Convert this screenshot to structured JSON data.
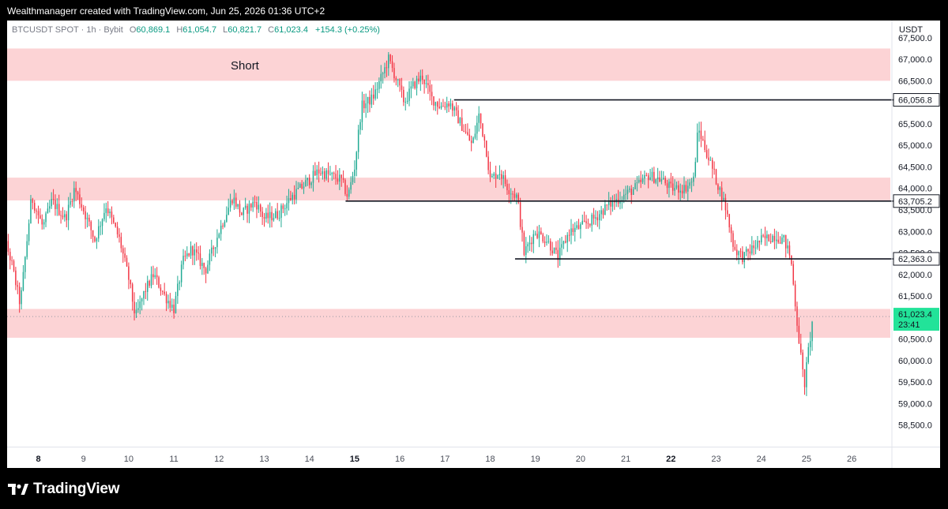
{
  "header": {
    "attribution": "Wealthmanagerr created with TradingView.com, Jun 25, 2026 01:36 UTC+2"
  },
  "legend": {
    "symbol": "BTCUSDT SPOT · 1h · Bybit",
    "open_label": "O",
    "open": "60,869.1",
    "high_label": "H",
    "high": "61,054.7",
    "low_label": "L",
    "low": "60,821.7",
    "close_label": "C",
    "close": "61,023.4",
    "change": "+154.3 (+0.25%)"
  },
  "currency": "USDT",
  "footer": {
    "brand": "TradingView"
  },
  "colors": {
    "up": "#22ab94",
    "down": "#f23645",
    "zone": "#fcd3d5",
    "current": "#22e399",
    "line": "#131722"
  },
  "chart_data": {
    "type": "candlestick",
    "ylim": [
      58000,
      67900
    ],
    "y_ticks": [
      58500,
      59000,
      59500,
      60000,
      60500,
      61000,
      61500,
      62000,
      62500,
      63000,
      63500,
      64000,
      64500,
      65000,
      65500,
      66000,
      66500,
      67000,
      67500
    ],
    "x_ticks": [
      {
        "label": "8",
        "day": 8,
        "bold": true
      },
      {
        "label": "9",
        "day": 9
      },
      {
        "label": "10",
        "day": 10
      },
      {
        "label": "11",
        "day": 11
      },
      {
        "label": "12",
        "day": 12
      },
      {
        "label": "13",
        "day": 13
      },
      {
        "label": "14",
        "day": 14
      },
      {
        "label": "15",
        "day": 15,
        "bold": true
      },
      {
        "label": "16",
        "day": 16
      },
      {
        "label": "17",
        "day": 17
      },
      {
        "label": "18",
        "day": 18
      },
      {
        "label": "19",
        "day": 19
      },
      {
        "label": "20",
        "day": 20
      },
      {
        "label": "21",
        "day": 21
      },
      {
        "label": "22",
        "day": 22,
        "bold": true
      },
      {
        "label": "23",
        "day": 23
      },
      {
        "label": "24",
        "day": 24
      },
      {
        "label": "25",
        "day": 25
      },
      {
        "label": "26",
        "day": 26
      }
    ],
    "zones": [
      {
        "from": 66500,
        "to": 67250,
        "label": "Short"
      },
      {
        "from": 63720,
        "to": 64250,
        "label": ""
      },
      {
        "from": 60530,
        "to": 61200,
        "label": ""
      }
    ],
    "levels": [
      {
        "price": 66056.8,
        "label": "66,056.8",
        "start_day": 17.2
      },
      {
        "price": 63705.2,
        "label": "63,705.2",
        "start_day": 14.8
      },
      {
        "price": 62363.0,
        "label": "62,363.0",
        "start_day": 18.55
      }
    ],
    "current": {
      "price": 61023.4,
      "label": "61,023.4",
      "countdown": "23:41"
    },
    "close_path": [
      [
        7.0,
        62400
      ],
      [
        7.2,
        63000
      ],
      [
        7.4,
        62300
      ],
      [
        7.6,
        61300
      ],
      [
        7.85,
        63800
      ],
      [
        8.1,
        63100
      ],
      [
        8.3,
        63700
      ],
      [
        8.6,
        63300
      ],
      [
        8.8,
        64000
      ],
      [
        9.0,
        63500
      ],
      [
        9.25,
        62800
      ],
      [
        9.5,
        63600
      ],
      [
        9.8,
        62800
      ],
      [
        10.0,
        61900
      ],
      [
        10.15,
        61000
      ],
      [
        10.35,
        61600
      ],
      [
        10.55,
        62000
      ],
      [
        10.8,
        61500
      ],
      [
        11.0,
        61200
      ],
      [
        11.2,
        62300
      ],
      [
        11.4,
        62600
      ],
      [
        11.7,
        62100
      ],
      [
        12.0,
        63000
      ],
      [
        12.3,
        63800
      ],
      [
        12.5,
        63400
      ],
      [
        12.8,
        63700
      ],
      [
        13.0,
        63300
      ],
      [
        13.3,
        63400
      ],
      [
        13.6,
        63800
      ],
      [
        13.9,
        64100
      ],
      [
        14.2,
        64400
      ],
      [
        14.45,
        64300
      ],
      [
        14.7,
        64200
      ],
      [
        14.85,
        63800
      ],
      [
        15.0,
        64500
      ],
      [
        15.15,
        65900
      ],
      [
        15.4,
        66100
      ],
      [
        15.6,
        66600
      ],
      [
        15.75,
        67000
      ],
      [
        15.9,
        66600
      ],
      [
        16.1,
        66000
      ],
      [
        16.3,
        66400
      ],
      [
        16.5,
        66600
      ],
      [
        16.7,
        66100
      ],
      [
        16.9,
        65900
      ],
      [
        17.1,
        66000
      ],
      [
        17.4,
        65400
      ],
      [
        17.6,
        65000
      ],
      [
        17.75,
        65700
      ],
      [
        17.9,
        65000
      ],
      [
        18.0,
        64200
      ],
      [
        18.2,
        64400
      ],
      [
        18.4,
        64000
      ],
      [
        18.6,
        63800
      ],
      [
        18.75,
        62500
      ],
      [
        19.0,
        63000
      ],
      [
        19.25,
        62800
      ],
      [
        19.5,
        62400
      ],
      [
        19.75,
        63000
      ],
      [
        20.0,
        63100
      ],
      [
        20.3,
        63300
      ],
      [
        20.6,
        63600
      ],
      [
        20.9,
        63800
      ],
      [
        21.2,
        64000
      ],
      [
        21.5,
        64300
      ],
      [
        21.8,
        64200
      ],
      [
        22.0,
        64000
      ],
      [
        22.3,
        64000
      ],
      [
        22.5,
        64200
      ],
      [
        22.6,
        65400
      ],
      [
        22.8,
        64800
      ],
      [
        23.0,
        64200
      ],
      [
        23.2,
        63600
      ],
      [
        23.4,
        62600
      ],
      [
        23.6,
        62400
      ],
      [
        23.8,
        62600
      ],
      [
        24.0,
        62800
      ],
      [
        24.3,
        62900
      ],
      [
        24.5,
        62800
      ],
      [
        24.65,
        62400
      ],
      [
        24.8,
        60800
      ],
      [
        24.95,
        59400
      ],
      [
        25.05,
        60300
      ],
      [
        25.15,
        61023
      ]
    ]
  }
}
